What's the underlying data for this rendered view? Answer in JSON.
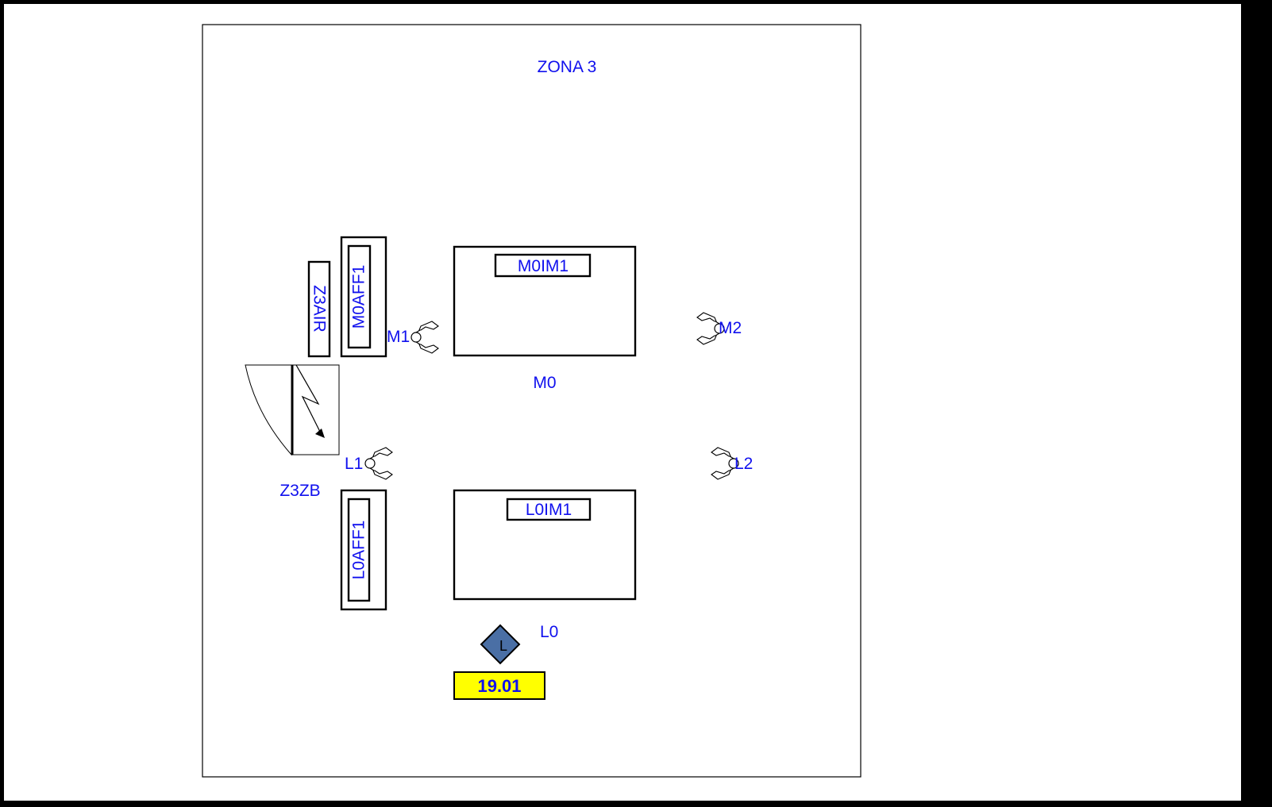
{
  "zone": {
    "title": "ZONA 3"
  },
  "colors": {
    "label": "#1010ee",
    "stroke": "#000000",
    "badge_fill": "#ffff00",
    "diamond_fill": "#4a6fa5"
  },
  "tables": {
    "m0": {
      "label": "M0",
      "inner_label": "M0IM1"
    },
    "l0": {
      "label": "L0",
      "inner_label": "L0IM1"
    }
  },
  "panels": {
    "z3air": "Z3AIR",
    "m0aff1": "M0AFF1",
    "l0aff1": "L0AFF1"
  },
  "door": {
    "label": "Z3ZB"
  },
  "seats": {
    "m1": "M1",
    "m2": "M2",
    "l1": "L1",
    "l2": "L2"
  },
  "marker": {
    "letter": "L",
    "icon": "diamond-marker-icon"
  },
  "badge": {
    "value": "19.01"
  }
}
